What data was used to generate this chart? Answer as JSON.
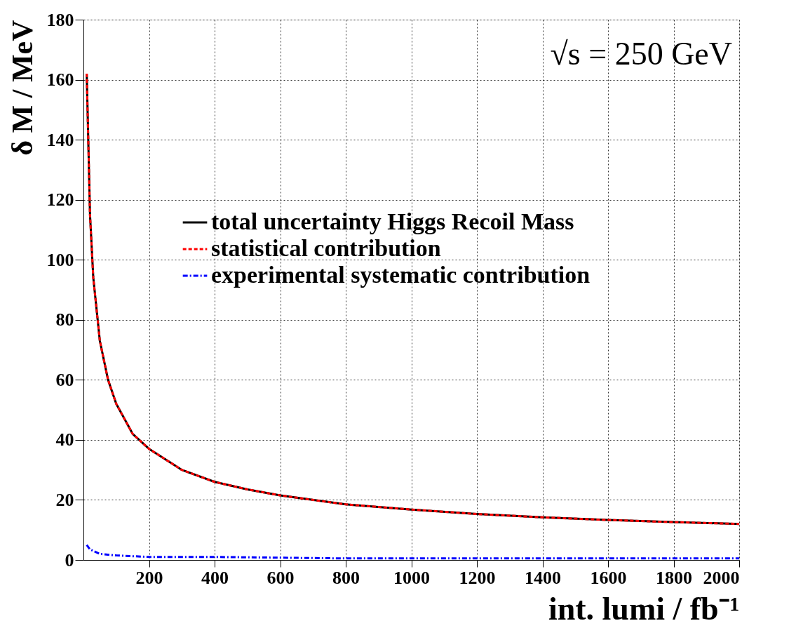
{
  "chart_data": {
    "type": "line",
    "xlabel": "int. lumi / fb⁻¹",
    "ylabel": "δ M / MeV",
    "annotations": [
      "√s = 250 GeV"
    ],
    "xlim": [
      0,
      2000
    ],
    "ylim": [
      0,
      180
    ],
    "xticks": [
      200,
      400,
      600,
      800,
      1000,
      1200,
      1400,
      1600,
      1800,
      2000
    ],
    "yticks": [
      0,
      20,
      40,
      60,
      80,
      100,
      120,
      140,
      160,
      180
    ],
    "grid": true,
    "legend": "right",
    "marker": "none",
    "x": [
      10,
      20,
      30,
      50,
      75,
      100,
      150,
      200,
      300,
      400,
      500,
      600,
      800,
      1000,
      1200,
      1400,
      1600,
      1800,
      2000
    ],
    "series": [
      {
        "name": "total uncertainty Higgs Recoil Mass",
        "color": "#000000",
        "line_style": "solid",
        "values": [
          162,
          115,
          94,
          73,
          60,
          52,
          42,
          37,
          30,
          26,
          23.5,
          21.5,
          18.5,
          16.8,
          15.3,
          14.2,
          13.3,
          12.6,
          12
        ]
      },
      {
        "name": "statistical contribution",
        "color": "#ff0000",
        "line_style": "dashed",
        "values": [
          162,
          115,
          94,
          73,
          60,
          52,
          42,
          37,
          30,
          26,
          23.5,
          21.5,
          18.5,
          16.8,
          15.3,
          14.2,
          13.3,
          12.6,
          12
        ]
      },
      {
        "name": "experimental systematic contribution",
        "color": "#0000ff",
        "line_style": "dotted",
        "x": [
          10,
          20,
          50,
          100,
          200,
          400,
          800,
          1200,
          2000
        ],
        "values": [
          5,
          3.5,
          2,
          1.5,
          1,
          1,
          0.5,
          0.5,
          0.5
        ]
      }
    ]
  }
}
